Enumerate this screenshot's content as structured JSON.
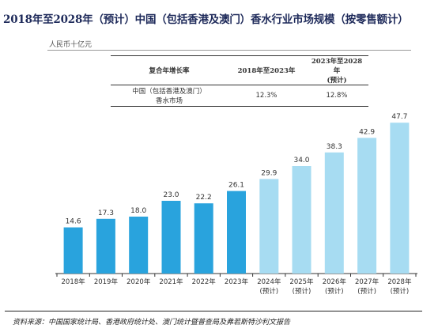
{
  "title": "2018年至2028年（预计）中国（包括香港及澳门）香水行业市场规模（按零售额计）",
  "unit": "人民币十亿元",
  "cagr_table": {
    "header": [
      "复合年增长率",
      "2018年至2023年",
      "2023年至2028年",
      "(预计)"
    ],
    "row_label_1": "中国（包括香港及澳门）",
    "row_label_2": "香水市场",
    "values": [
      "12.3%",
      "12.8%"
    ]
  },
  "source": "资料来源：中国国家统计局、香港政府统计处、澳门统计暨普查局及弗若斯特沙利文报告",
  "colors": {
    "actual": "#29a3dd",
    "forecast": "#a7dcf2",
    "title": "#1e2a5a"
  },
  "chart_data": {
    "type": "bar",
    "title": "2018年至2028年（预计）中国（包括香港及澳门）香水行业市场规模（按零售额计）",
    "ylabel": "人民币十亿元",
    "xlabel": "",
    "categories": [
      "2018年",
      "2019年",
      "2020年",
      "2021年",
      "2022年",
      "2023年",
      "2024年",
      "2025年",
      "2026年",
      "2027年",
      "2028年"
    ],
    "category_notes": [
      "",
      "",
      "",
      "",
      "",
      "",
      "(预计)",
      "(预计)",
      "(预计)",
      "(预计)",
      "(预计)"
    ],
    "values": [
      14.6,
      17.3,
      18.0,
      23.0,
      22.2,
      26.1,
      29.9,
      34.0,
      38.3,
      42.9,
      47.7
    ],
    "forecast_from_index": 6,
    "ylim": [
      0,
      50
    ],
    "grid": false,
    "legend": "none"
  }
}
